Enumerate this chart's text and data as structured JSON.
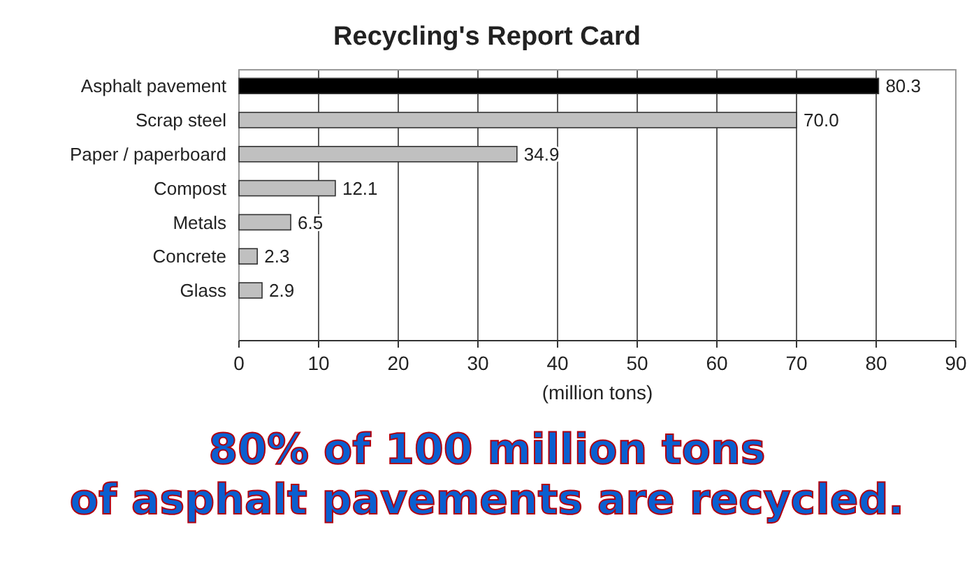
{
  "chart_data": {
    "type": "bar",
    "orientation": "horizontal",
    "title": "Recycling's Report Card",
    "xlabel": "(million tons)",
    "categories": [
      "Asphalt pavement",
      "Scrap steel",
      "Paper / paperboard",
      "Compost",
      "Metals",
      "Concrete",
      "Glass",
      null
    ],
    "values": [
      80.3,
      70.0,
      34.9,
      12.1,
      6.5,
      2.3,
      2.9,
      null
    ],
    "value_labels": [
      "80.3",
      "70.0",
      "34.9",
      "12.1",
      "6.5",
      "2.3",
      "2.9",
      null
    ],
    "colors": [
      "#000000",
      "#c0c0c0",
      "#c0c0c0",
      "#c0c0c0",
      "#c0c0c0",
      "#c0c0c0",
      "#c0c0c0",
      "#c0c0c0"
    ],
    "xlim": [
      0,
      90
    ],
    "xticks": [
      0,
      10,
      20,
      30,
      40,
      50,
      60,
      70,
      80,
      90
    ],
    "grid": "x",
    "annotations": [
      "80% of 100 million tons of asphalt pavements are recycled."
    ]
  }
}
